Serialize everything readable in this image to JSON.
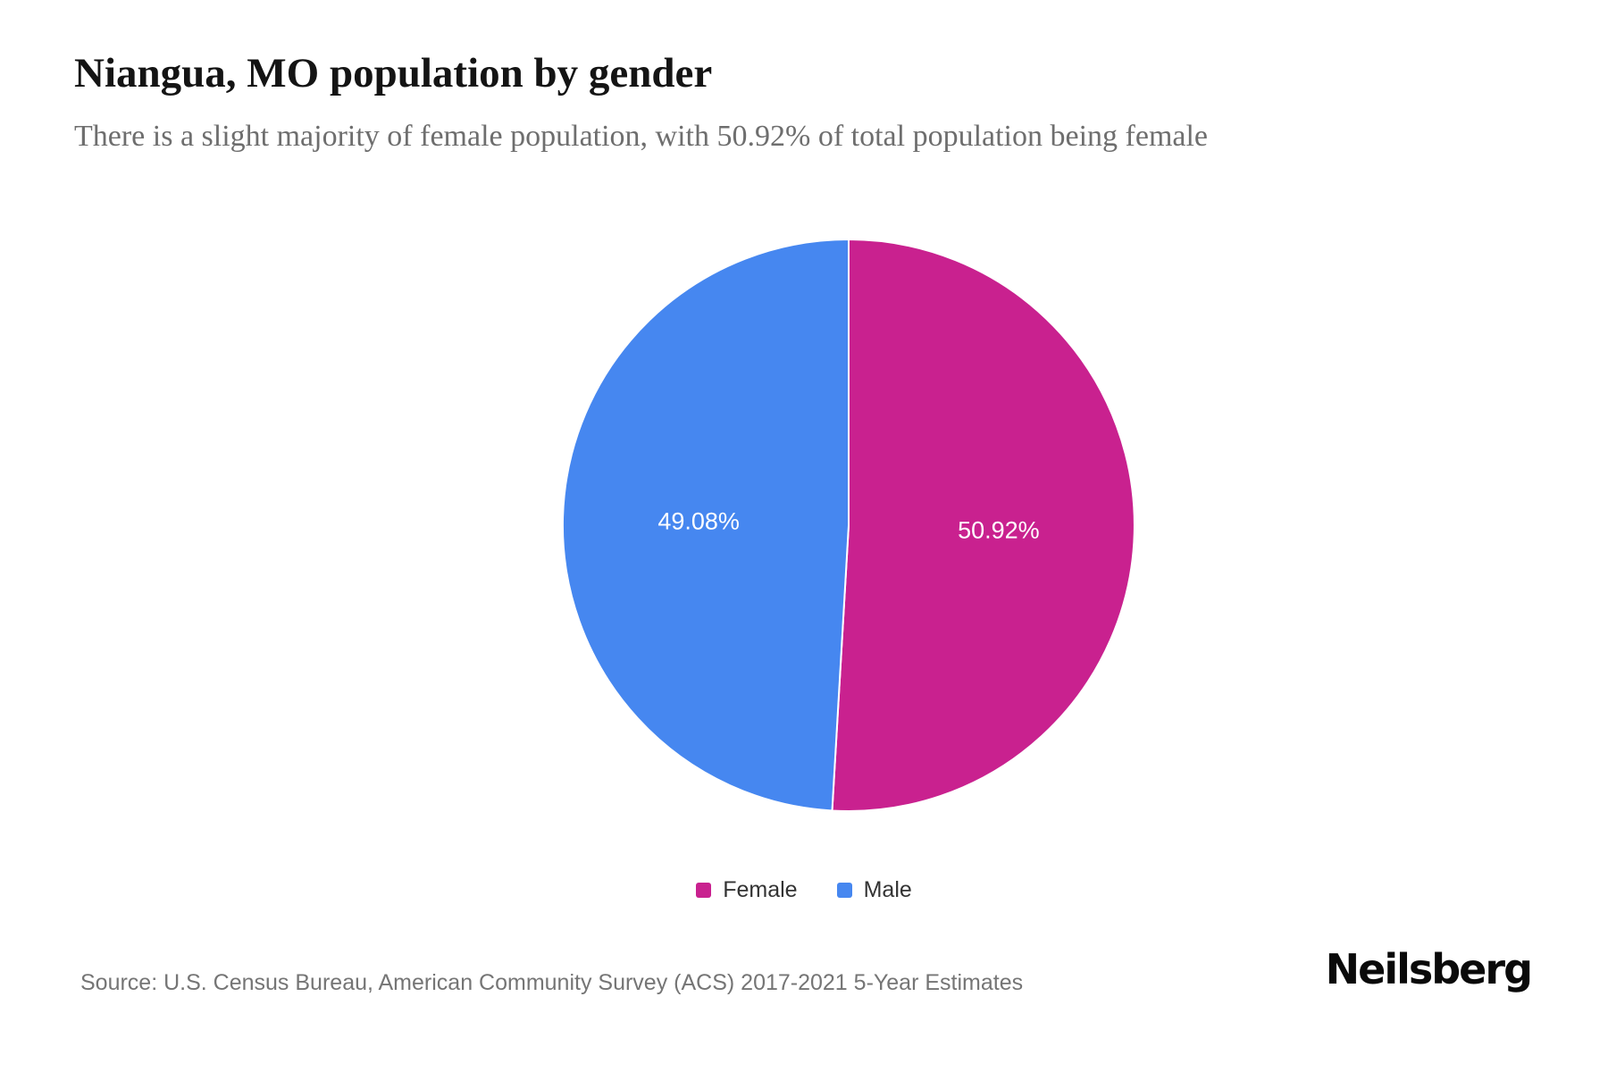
{
  "header": {
    "title": "Niangua, MO population by gender",
    "subtitle": "There is a slight majority of female population, with 50.92% of total population being female"
  },
  "footer": {
    "source": "Source: U.S. Census Bureau, American Community Survey (ACS) 2017-2021 5-Year Estimates",
    "brand": "Neilsberg"
  },
  "colors": {
    "female": "#C9218F",
    "male": "#4687F0",
    "slice_border": "#FFFFFF",
    "title_text": "#141414",
    "subtitle_text": "#6E6E6E",
    "source_text": "#757575",
    "legend_text": "#333333"
  },
  "chart_data": {
    "type": "pie",
    "title": "Niangua, MO population by gender",
    "legend_position": "bottom",
    "start_angle_deg": 0,
    "direction": "clockwise",
    "slices": [
      {
        "label": "Female",
        "value": 50.92,
        "display": "50.92%",
        "color": "#C9218F"
      },
      {
        "label": "Male",
        "value": 49.08,
        "display": "49.08%",
        "color": "#4687F0"
      }
    ]
  }
}
